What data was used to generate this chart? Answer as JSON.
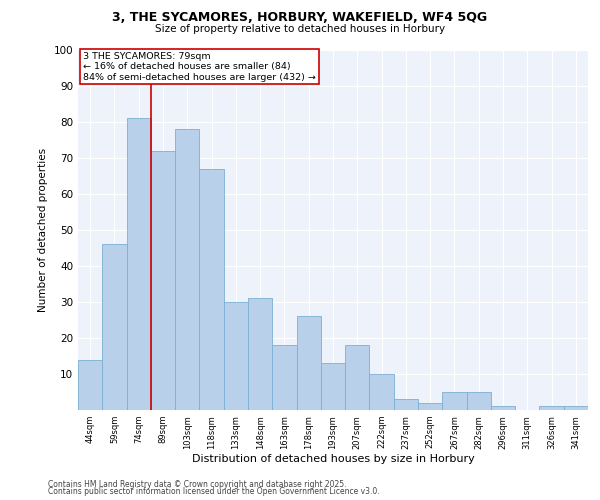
{
  "title1": "3, THE SYCAMORES, HORBURY, WAKEFIELD, WF4 5QG",
  "title2": "Size of property relative to detached houses in Horbury",
  "xlabel": "Distribution of detached houses by size in Horbury",
  "ylabel": "Number of detached properties",
  "categories": [
    "44sqm",
    "59sqm",
    "74sqm",
    "89sqm",
    "103sqm",
    "118sqm",
    "133sqm",
    "148sqm",
    "163sqm",
    "178sqm",
    "193sqm",
    "207sqm",
    "222sqm",
    "237sqm",
    "252sqm",
    "267sqm",
    "282sqm",
    "296sqm",
    "311sqm",
    "326sqm",
    "341sqm"
  ],
  "values": [
    14,
    46,
    81,
    72,
    78,
    67,
    30,
    31,
    18,
    26,
    13,
    18,
    10,
    3,
    2,
    5,
    5,
    1,
    0,
    1,
    1
  ],
  "bar_color": "#b8d0ea",
  "bar_edge_color": "#7aafd4",
  "redline_color": "#cc0000",
  "annotation_line1": "3 THE SYCAMORES: 79sqm",
  "annotation_line2": "← 16% of detached houses are smaller (84)",
  "annotation_line3": "84% of semi-detached houses are larger (432) →",
  "ylim": [
    0,
    100
  ],
  "yticks": [
    0,
    10,
    20,
    30,
    40,
    50,
    60,
    70,
    80,
    90,
    100
  ],
  "background_color": "#eef2fb",
  "footer1": "Contains HM Land Registry data © Crown copyright and database right 2025.",
  "footer2": "Contains public sector information licensed under the Open Government Licence v3.0."
}
